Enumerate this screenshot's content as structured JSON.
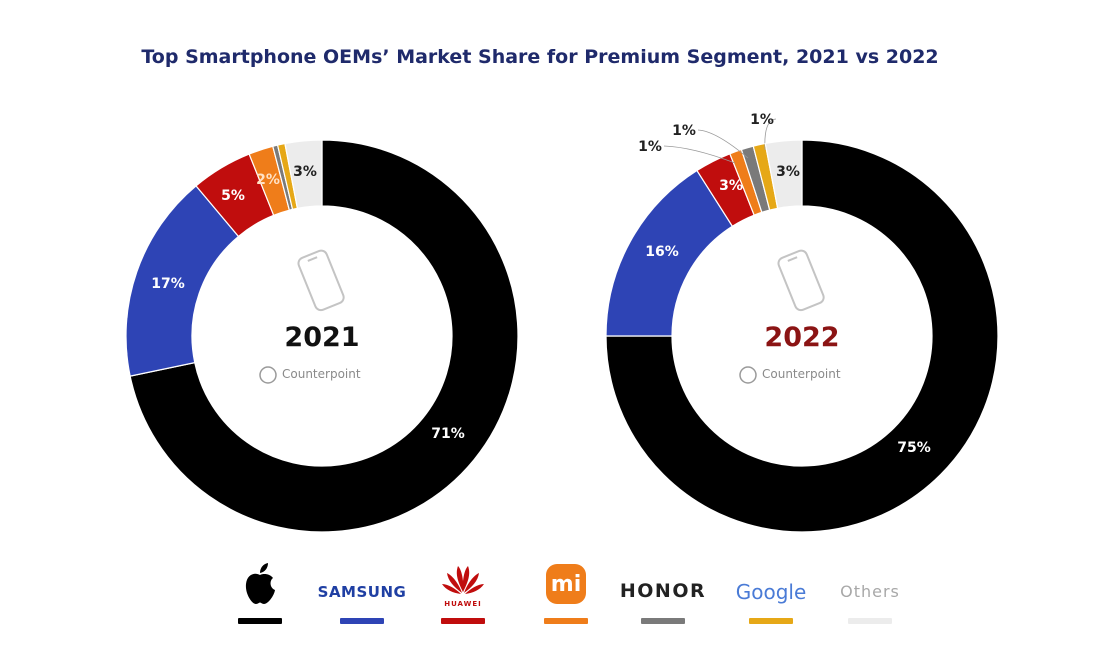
{
  "chart_data": [
    {
      "type": "pie",
      "title": "Top Smartphone OEMs’ Market Share for Premium Segment, 2021 vs 2022",
      "center_label": "2021",
      "watermark": "Counterpoint",
      "slices": [
        {
          "name": "Apple",
          "value": 71,
          "label": "71%"
        },
        {
          "name": "Samsung",
          "value": 17,
          "label": "17%"
        },
        {
          "name": "Huawei",
          "value": 5,
          "label": "5%"
        },
        {
          "name": "Xiaomi",
          "value": 2,
          "label": "2%"
        },
        {
          "name": "Honor",
          "value": 0.4,
          "label": ""
        },
        {
          "name": "Google",
          "value": 0.6,
          "label": ""
        },
        {
          "name": "Others",
          "value": 3,
          "label": "3%"
        }
      ]
    },
    {
      "type": "pie",
      "center_label": "2022",
      "watermark": "Counterpoint",
      "slices": [
        {
          "name": "Apple",
          "value": 75,
          "label": "75%"
        },
        {
          "name": "Samsung",
          "value": 16,
          "label": "16%"
        },
        {
          "name": "Huawei",
          "value": 3,
          "label": "3%"
        },
        {
          "name": "Xiaomi",
          "value": 1,
          "label": "1%"
        },
        {
          "name": "Honor",
          "value": 1,
          "label": "1%"
        },
        {
          "name": "Google",
          "value": 1,
          "label": "1%"
        },
        {
          "name": "Others",
          "value": 3,
          "label": "3%"
        }
      ]
    }
  ],
  "colors": {
    "Apple": "#000000",
    "Samsung": "#2e44b5",
    "Huawei": "#c00d0d",
    "Xiaomi": "#ef7d1a",
    "Honor": "#7a7a7a",
    "Google": "#e6a817",
    "Others": "#ececec",
    "title": "#1f2a6b",
    "year2022": "#8b1414"
  },
  "legend": [
    {
      "name": "Apple",
      "text": "",
      "icon": "apple-logo-icon"
    },
    {
      "name": "Samsung",
      "text": "SAMSUNG"
    },
    {
      "name": "Huawei",
      "text": "HUAWEI",
      "icon": "huawei-logo-icon"
    },
    {
      "name": "Xiaomi",
      "text": "mi",
      "icon": "xiaomi-logo-icon"
    },
    {
      "name": "Honor",
      "text": "HONOR"
    },
    {
      "name": "Google",
      "text": "Google"
    },
    {
      "name": "Others",
      "text": "Others"
    }
  ]
}
